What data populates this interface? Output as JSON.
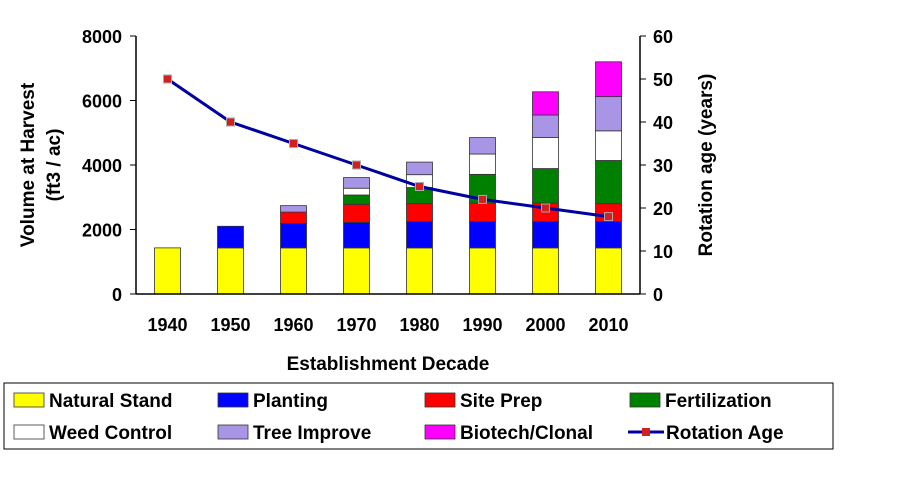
{
  "chart_data": {
    "type": "bar",
    "stacked": true,
    "title": "",
    "xlabel": "Establishment Decade",
    "ylabel": "Volume at Harvest (ft3 / ac)",
    "ylabel_lines": [
      "Volume at Harvest",
      "(ft3 / ac)"
    ],
    "y2label": "Rotation age (years)",
    "ylim": [
      0,
      8000
    ],
    "y2lim": [
      0,
      60
    ],
    "yticks": [
      "0",
      "2000",
      "4000",
      "6000",
      "8000"
    ],
    "y2ticks": [
      "0",
      "10",
      "20",
      "30",
      "40",
      "50",
      "60"
    ],
    "categories": [
      "1940",
      "1950",
      "1960",
      "1970",
      "1980",
      "1990",
      "2000",
      "2010"
    ],
    "grid": false,
    "legend_placement": "bottom",
    "series": [
      {
        "name": "Natural Stand",
        "color": "#ffff00",
        "values": [
          1430,
          1430,
          1430,
          1430,
          1430,
          1430,
          1430,
          1430
        ]
      },
      {
        "name": "Planting",
        "color": "#0000ff",
        "values": [
          0,
          670,
          760,
          790,
          820,
          820,
          820,
          820
        ]
      },
      {
        "name": "Site Prep",
        "color": "#ff0000",
        "values": [
          0,
          0,
          350,
          560,
          550,
          570,
          570,
          550
        ]
      },
      {
        "name": "Fertilization",
        "color": "#008000",
        "values": [
          0,
          0,
          0,
          290,
          500,
          890,
          1070,
          1340
        ]
      },
      {
        "name": "Weed Control",
        "color": "#ffffff",
        "values": [
          0,
          0,
          0,
          210,
          400,
          630,
          960,
          920
        ]
      },
      {
        "name": "Tree Improve",
        "color": "#a995e6",
        "values": [
          0,
          0,
          200,
          330,
          390,
          510,
          700,
          1060
        ]
      },
      {
        "name": "Biotech/Clonal",
        "color": "#ff00ff",
        "values": [
          0,
          0,
          0,
          0,
          0,
          0,
          720,
          1080
        ]
      }
    ],
    "line_series": {
      "name": "Rotation Age",
      "axis": "right",
      "color": "#0000a0",
      "marker_color": "#d02020",
      "values": [
        50,
        40,
        35,
        30,
        25,
        22,
        20,
        18
      ]
    }
  }
}
